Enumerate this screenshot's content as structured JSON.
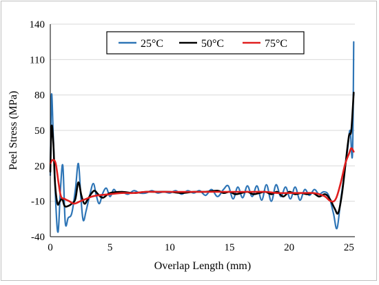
{
  "chart_data": {
    "type": "line",
    "title": "",
    "xlabel": "Overlap Length (mm)",
    "ylabel": "Peel Stress (MPa)",
    "xlim": [
      0,
      25.5
    ],
    "ylim": [
      -40,
      140
    ],
    "x_ticks": [
      "0",
      "5",
      "10",
      "15",
      "20",
      "25"
    ],
    "y_ticks": [
      "-40",
      "-10",
      "20",
      "50",
      "80",
      "110",
      "140"
    ],
    "grid": "horizontal",
    "legend_position": "top-center, boxed",
    "series": [
      {
        "name": "25°C",
        "color": "#2e75b6",
        "x": [
          0,
          0.1,
          0.25,
          0.45,
          0.65,
          0.85,
          1.05,
          1.25,
          1.5,
          1.8,
          2.1,
          2.35,
          2.55,
          2.75,
          3.0,
          3.3,
          3.6,
          3.85,
          4.1,
          4.4,
          4.7,
          5.0,
          5.3,
          5.6,
          6.0,
          6.5,
          7.0,
          7.5,
          8.0,
          8.5,
          9.0,
          9.5,
          10.0,
          10.5,
          11.0,
          11.5,
          12.0,
          12.5,
          13.0,
          13.5,
          14.0,
          14.5,
          14.9,
          15.3,
          15.7,
          16.1,
          16.5,
          16.9,
          17.3,
          17.7,
          18.1,
          18.5,
          18.9,
          19.3,
          19.7,
          20.1,
          20.5,
          20.9,
          21.3,
          21.7,
          22.1,
          22.5,
          22.9,
          23.3,
          23.7,
          24.0,
          24.3,
          24.6,
          24.9,
          25.1,
          25.3,
          25.4
        ],
        "y": [
          12,
          80,
          45,
          -10,
          -36,
          0,
          20,
          -28,
          -24,
          -20,
          0,
          22,
          -5,
          -26,
          -18,
          -5,
          5,
          -5,
          -12,
          -3,
          1,
          -6,
          0,
          -3,
          -2,
          -4,
          -1,
          -3,
          -3,
          -1,
          -3,
          -2,
          -3,
          -1,
          -4,
          -1,
          -3,
          -1,
          -5,
          0,
          -6,
          0,
          3,
          -8,
          2,
          -7,
          3,
          -6,
          3,
          -9,
          4,
          -10,
          4,
          -6,
          2,
          -8,
          2,
          -9,
          0,
          -5,
          0,
          -4,
          -2,
          -5,
          -20,
          -33,
          -10,
          12,
          35,
          50,
          30,
          125
        ]
      },
      {
        "name": "50°C",
        "color": "#000000",
        "x": [
          0,
          0.1,
          0.25,
          0.4,
          0.6,
          0.8,
          1.0,
          1.2,
          1.5,
          1.8,
          2.1,
          2.35,
          2.6,
          2.85,
          3.1,
          3.4,
          3.7,
          4.0,
          4.4,
          5.0,
          6.0,
          7.0,
          8.0,
          9.0,
          10.0,
          11.0,
          12.0,
          13.0,
          14.0,
          14.5,
          15.0,
          15.5,
          16.0,
          16.5,
          17.0,
          17.5,
          18.0,
          18.5,
          19.0,
          19.5,
          20.0,
          20.5,
          21.0,
          21.5,
          22.0,
          22.5,
          23.0,
          23.4,
          23.8,
          24.1,
          24.4,
          24.7,
          25.0,
          25.2,
          25.4
        ],
        "y": [
          15,
          53,
          40,
          5,
          -12,
          -10,
          -8,
          -14,
          -14,
          -12,
          -8,
          6,
          -5,
          -12,
          -9,
          -4,
          -1,
          -4,
          -7,
          -3,
          -2,
          -3,
          -2,
          -2,
          -2,
          -3,
          -2,
          -2,
          -1,
          -3,
          -2,
          -4,
          -3,
          -2,
          -4,
          -3,
          -2,
          -4,
          -2,
          -6,
          -2,
          -4,
          -3,
          -4,
          -3,
          -6,
          -4,
          -8,
          -16,
          -20,
          -5,
          20,
          45,
          50,
          82
        ]
      },
      {
        "name": "75°C",
        "color": "#e01e1e",
        "x": [
          0,
          0.2,
          0.45,
          0.7,
          0.9,
          1.2,
          1.6,
          2.0,
          2.5,
          3.0,
          3.5,
          4.0,
          5.0,
          6.0,
          7.0,
          8.0,
          9.0,
          10.0,
          11.0,
          12.0,
          13.0,
          14.0,
          15.0,
          16.0,
          17.0,
          18.0,
          19.0,
          20.0,
          21.0,
          22.0,
          22.5,
          23.0,
          23.5,
          23.9,
          24.3,
          24.7,
          25.0,
          25.2,
          25.4
        ],
        "y": [
          22,
          25,
          22,
          5,
          -6,
          -8,
          -10,
          -12,
          -10,
          -8,
          -6,
          -5,
          -4,
          -3,
          -3,
          -2,
          -2,
          -2,
          -2,
          -2,
          -2,
          -2,
          -2,
          -2,
          -2,
          -2,
          -3,
          -3,
          -3,
          -3,
          -4,
          -6,
          -10,
          -8,
          5,
          22,
          30,
          35,
          32
        ]
      }
    ]
  }
}
